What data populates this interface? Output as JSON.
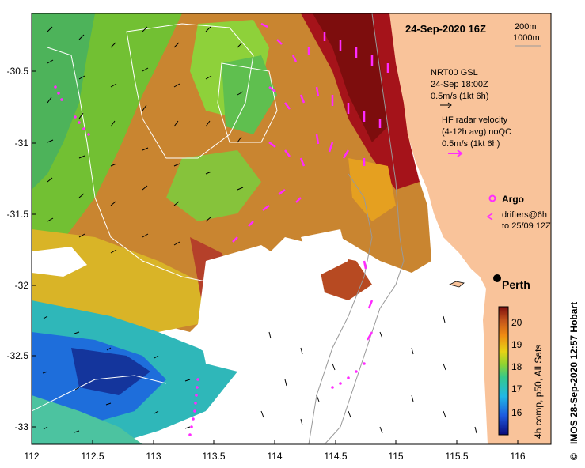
{
  "map": {
    "title": "24-Sep-2020 16Z",
    "depth_legend": [
      "200m",
      "1000m"
    ],
    "city": "Perth",
    "credit": "IMOS 28-Sep-2020 12:57 Hobart",
    "credit_symbol": "©",
    "colorbar_caption": "4h comp, p50, All Sats",
    "colorbar_ticks": [
      "16",
      "17",
      "18",
      "19",
      "20"
    ],
    "x_ticks": [
      "112",
      "112.5",
      "113",
      "113.5",
      "114",
      "114.5",
      "115",
      "115.5",
      "116"
    ],
    "y_ticks": [
      "-30.5",
      "-31",
      "-31.5",
      "-32",
      "-32.5",
      "-33"
    ],
    "gsl_legend": [
      "NRT00 GSL",
      "24-Sep 18:00Z",
      "0.5m/s (1kt 6h)"
    ],
    "hf_legend": [
      "HF radar velocity",
      "(4-12h avg) noQC",
      "0.5m/s (1kt 6h)"
    ],
    "argo_label": "Argo",
    "drifter_legend": [
      "drifters@6h",
      "to 25/09 12Z"
    ]
  },
  "colors": {
    "land": "#f9c39a",
    "hf_arrow": "#ff2bff",
    "gsl_arrow": "#000000",
    "contour": "#ffffff",
    "bathy_line": "#999999"
  }
}
